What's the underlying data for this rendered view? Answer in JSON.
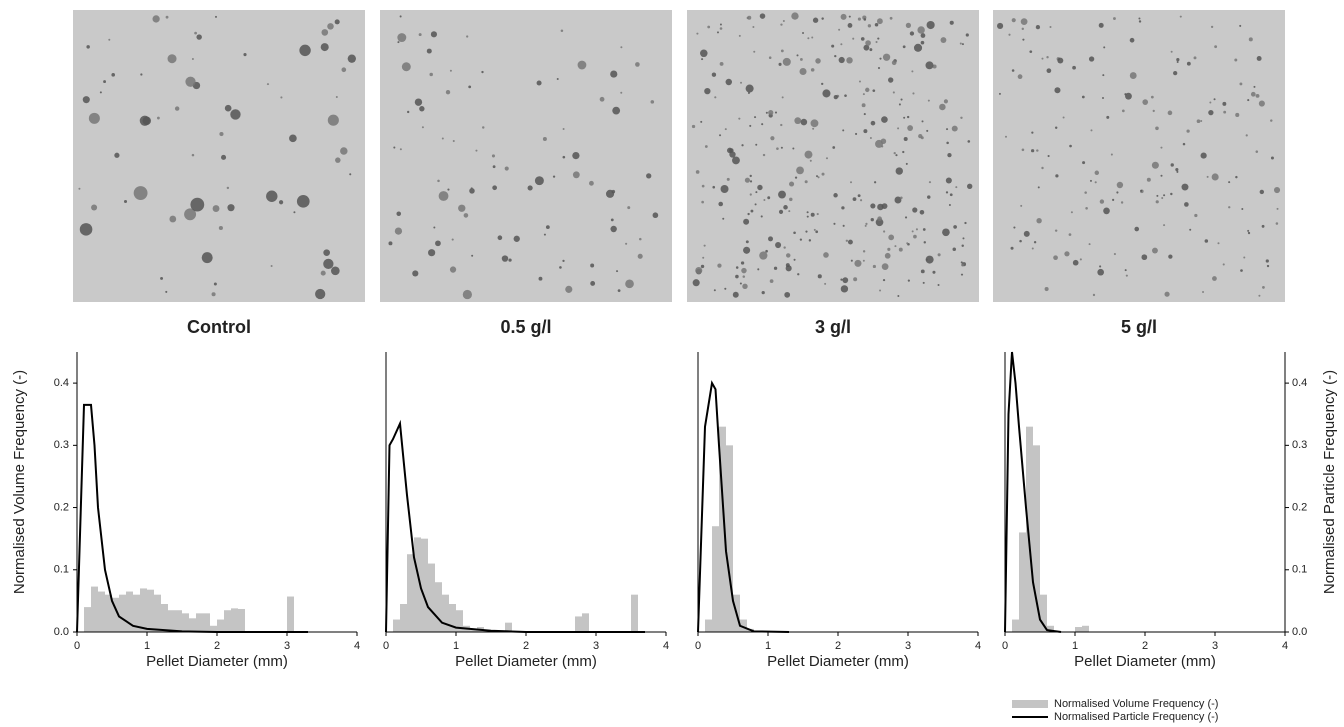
{
  "chart_data": [
    {
      "type": "histogram",
      "title": "Control",
      "xlabel": "Pellet Diameter (mm)",
      "ylabel": "Normalised Volume Frequency (-)",
      "xlim": [
        0,
        4
      ],
      "xticks": [
        0,
        1,
        2,
        3,
        4
      ],
      "ylim": [
        0,
        0.45
      ],
      "yticks": [
        {
          "value": 0,
          "label": "0.0"
        },
        0.1,
        0.2,
        0.3,
        0.4
      ],
      "bins": [
        0,
        0.1,
        0.2,
        0.3,
        0.4,
        0.5,
        0.6,
        0.7,
        0.8,
        0.9,
        1,
        1.1,
        1.2,
        1.3,
        1.4,
        1.5,
        1.6,
        1.7,
        1.8,
        1.9,
        2,
        2.1,
        2.2,
        2.3,
        2.4,
        2.5,
        2.6,
        2.7,
        2.8,
        2.9,
        3,
        3.1,
        3.2,
        3.3,
        3.4,
        3.5,
        3.6
      ],
      "counts": [
        0,
        0.04,
        0.073,
        0.065,
        0.06,
        0.055,
        0.06,
        0.065,
        0.06,
        0.07,
        0.068,
        0.06,
        0.045,
        0.035,
        0.035,
        0.03,
        0.022,
        0.03,
        0.03,
        0.01,
        0.02,
        0.035,
        0.038,
        0.037,
        0,
        0,
        0,
        0,
        0,
        0,
        0.057,
        0,
        0,
        0,
        0,
        0
      ],
      "bar_color": "#c4c4c4",
      "line_color": "#000000",
      "line_x": [
        0,
        0.1,
        0.15,
        0.2,
        0.25,
        0.3,
        0.4,
        0.5,
        0.6,
        0.8,
        1,
        1.5,
        2,
        3.3
      ],
      "line_values": [
        0,
        0.365,
        0.365,
        0.365,
        0.3,
        0.2,
        0.1,
        0.05,
        0.025,
        0.01,
        0.005,
        0.001,
        0,
        0
      ]
    },
    {
      "type": "histogram",
      "title": "0.5 g/l",
      "xlabel": "Pellet Diameter (mm)",
      "xlim": [
        0,
        4
      ],
      "xticks": [
        0,
        1,
        2,
        3,
        4
      ],
      "ylim": [
        0,
        0.45
      ],
      "bins": [
        0,
        0.1,
        0.2,
        0.3,
        0.4,
        0.5,
        0.6,
        0.7,
        0.8,
        0.9,
        1,
        1.1,
        1.2,
        1.3,
        1.4,
        1.5,
        1.6,
        1.7,
        1.8,
        1.9,
        2,
        2.1,
        2.2,
        2.3,
        2.4,
        2.5,
        2.6,
        2.7,
        2.8,
        2.9,
        3,
        3.1,
        3.2,
        3.3,
        3.4,
        3.5,
        3.6
      ],
      "counts": [
        0,
        0.02,
        0.045,
        0.125,
        0.152,
        0.15,
        0.11,
        0.08,
        0.06,
        0.045,
        0.035,
        0.01,
        0.003,
        0.008,
        0.003,
        0,
        0,
        0.015,
        0,
        0,
        0,
        0,
        0,
        0,
        0,
        0,
        0,
        0.025,
        0.03,
        0,
        0,
        0,
        0,
        0,
        0,
        0.06
      ],
      "bar_color": "#c4c4c4",
      "line_color": "#000000",
      "line_x": [
        0,
        0.05,
        0.1,
        0.2,
        0.3,
        0.4,
        0.5,
        0.6,
        0.8,
        1,
        1.5,
        2,
        3.7
      ],
      "line_values": [
        0,
        0.3,
        0.31,
        0.335,
        0.22,
        0.12,
        0.07,
        0.04,
        0.015,
        0.007,
        0.002,
        0,
        0
      ]
    },
    {
      "type": "histogram",
      "title": "3 g/l",
      "xlabel": "Pellet Diameter (mm)",
      "xlim": [
        0,
        4
      ],
      "xticks": [
        0,
        1,
        2,
        3,
        4
      ],
      "ylim": [
        0,
        0.45
      ],
      "bins": [
        0,
        0.1,
        0.2,
        0.3,
        0.4,
        0.5,
        0.6,
        0.7,
        0.8
      ],
      "counts": [
        0,
        0.02,
        0.17,
        0.33,
        0.3,
        0.06,
        0.02,
        0.005
      ],
      "bar_color": "#c4c4c4",
      "line_color": "#000000",
      "line_x": [
        0,
        0.1,
        0.2,
        0.25,
        0.3,
        0.4,
        0.5,
        0.6,
        0.8,
        1.3
      ],
      "line_values": [
        0,
        0.33,
        0.4,
        0.39,
        0.3,
        0.13,
        0.05,
        0.01,
        0.001,
        0
      ]
    },
    {
      "type": "histogram",
      "title": "5 g/l",
      "xlabel": "Pellet Diameter (mm)",
      "y2label": "Normalised Particle Frequency (-)",
      "xlim": [
        0,
        4
      ],
      "xticks": [
        0,
        1,
        2,
        3,
        4
      ],
      "ylim": [
        0,
        0.45
      ],
      "y2lim": [
        0,
        0.45
      ],
      "y2ticks": [
        {
          "value": 0,
          "label": "0.0"
        },
        0.1,
        0.2,
        0.3,
        0.4
      ],
      "bins": [
        0,
        0.1,
        0.2,
        0.3,
        0.4,
        0.5,
        0.6,
        0.7,
        0.8,
        0.9,
        1,
        1.1,
        1.2
      ],
      "counts": [
        0,
        0.02,
        0.16,
        0.33,
        0.3,
        0.06,
        0.01,
        0,
        0,
        0,
        0.008,
        0.01
      ],
      "bar_color": "#c4c4c4",
      "line_color": "#000000",
      "line_x": [
        0,
        0.05,
        0.1,
        0.15,
        0.2,
        0.3,
        0.4,
        0.5,
        0.6,
        0.8
      ],
      "line_values": [
        0,
        0.35,
        0.45,
        0.4,
        0.33,
        0.2,
        0.08,
        0.02,
        0.003,
        0
      ]
    }
  ],
  "legend": [
    {
      "name": "Normalised Volume Frequency (-)",
      "kind": "bar"
    },
    {
      "name": "Normalised Particle Frequency (-)",
      "kind": "line"
    }
  ]
}
